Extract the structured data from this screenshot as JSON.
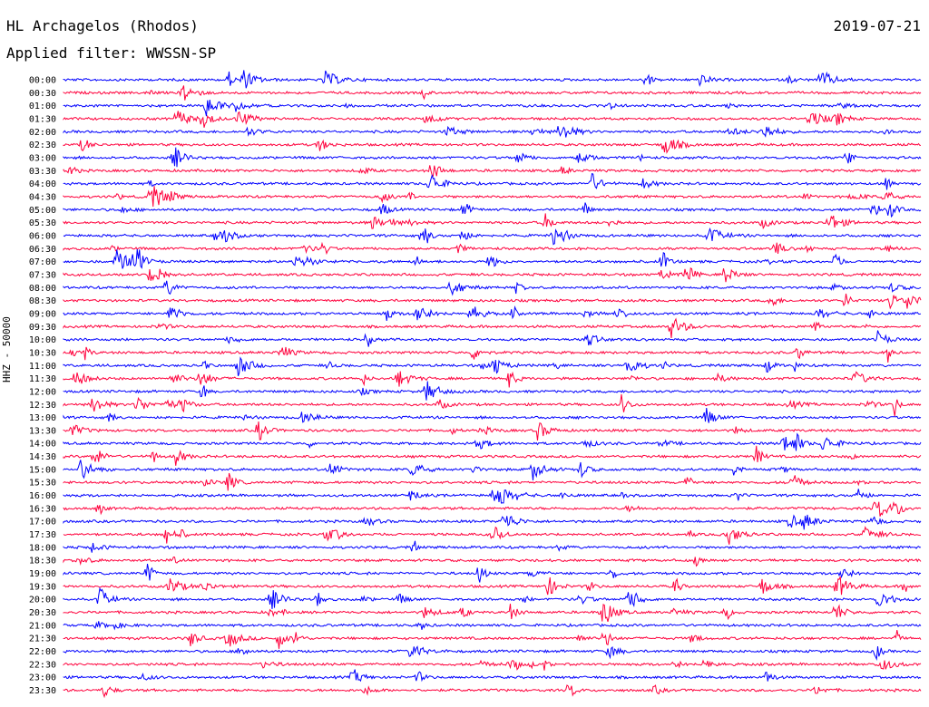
{
  "header": {
    "station": "HL Archagelos (Rhodos)",
    "filter": "Applied filter: WWSSN-SP",
    "date": "2019-07-21",
    "channel": "HHZ - 50000"
  },
  "colors": {
    "trace_a": "#0000ff",
    "trace_b": "#ff003c",
    "text": "#000000"
  },
  "chart_data": {
    "type": "line",
    "subtype": "helicorder",
    "times": [
      "00:00",
      "00:30",
      "01:00",
      "01:30",
      "02:00",
      "02:30",
      "03:00",
      "03:30",
      "04:00",
      "04:30",
      "05:00",
      "05:30",
      "06:00",
      "06:30",
      "07:00",
      "07:30",
      "08:00",
      "08:30",
      "09:00",
      "09:30",
      "10:00",
      "10:30",
      "11:00",
      "11:30",
      "12:00",
      "12:30",
      "13:00",
      "13:30",
      "14:00",
      "14:30",
      "15:00",
      "15:30",
      "16:00",
      "16:30",
      "17:00",
      "17:30",
      "18:00",
      "18:30",
      "19:00",
      "19:30",
      "20:00",
      "20:30",
      "21:00",
      "21:30",
      "22:00",
      "22:30",
      "23:00",
      "23:30"
    ],
    "line_duration_minutes": 30,
    "alternating_colors": [
      "#0000ff",
      "#ff003c"
    ],
    "ylabel": "HHZ - 50000",
    "grid": false,
    "legend": "none"
  }
}
